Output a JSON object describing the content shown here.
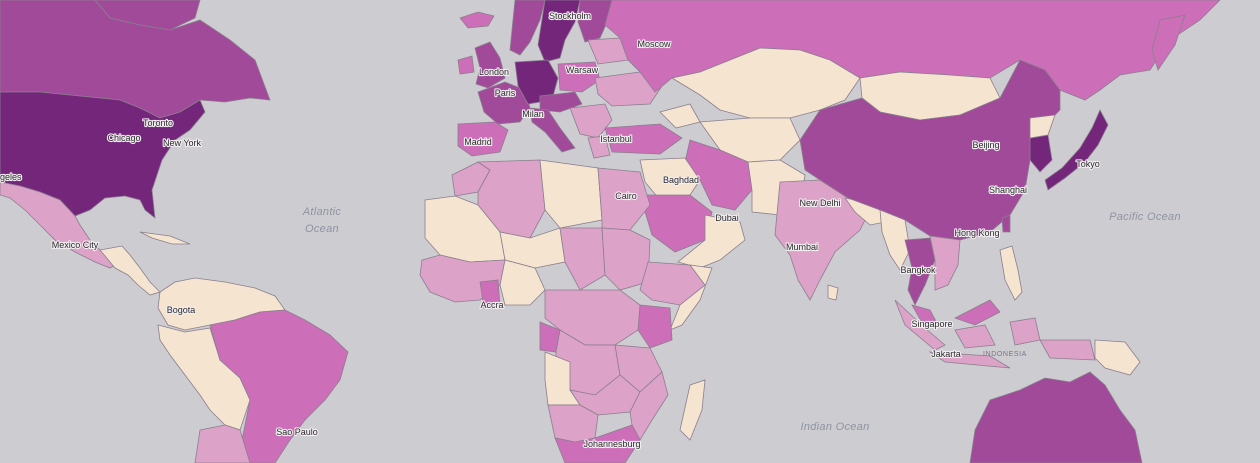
{
  "palette": {
    "ocean": "#cdccd1",
    "level_1": "#f5e4cf",
    "level_2": "#dda2c8",
    "level_3": "#cd6fb8",
    "level_4": "#a24a9a",
    "level_5": "#74267a"
  },
  "cities": [
    {
      "key": "stockholm",
      "label": "Stockholm"
    },
    {
      "key": "moscow",
      "label": "Moscow"
    },
    {
      "key": "london",
      "label": "London"
    },
    {
      "key": "warsaw",
      "label": "Warsaw"
    },
    {
      "key": "paris",
      "label": "Paris"
    },
    {
      "key": "milan",
      "label": "Milan"
    },
    {
      "key": "istanbul",
      "label": "Istanbul"
    },
    {
      "key": "madrid",
      "label": "Madrid"
    },
    {
      "key": "toronto",
      "label": "Toronto"
    },
    {
      "key": "chicago",
      "label": "Chicago"
    },
    {
      "key": "new_york",
      "label": "New York"
    },
    {
      "key": "los_angeles",
      "label": "geles"
    },
    {
      "key": "mexico_city",
      "label": "Mexico City"
    },
    {
      "key": "bogota",
      "label": "Bogota"
    },
    {
      "key": "sao_paulo",
      "label": "Sao Paulo"
    },
    {
      "key": "baghdad",
      "label": "Baghdad"
    },
    {
      "key": "cairo",
      "label": "Cairo"
    },
    {
      "key": "dubai",
      "label": "Dubai"
    },
    {
      "key": "new_delhi",
      "label": "New Delhi"
    },
    {
      "key": "mumbai",
      "label": "Mumbai"
    },
    {
      "key": "accra",
      "label": "Accra"
    },
    {
      "key": "johannesburg",
      "label": "Johannesburg"
    },
    {
      "key": "beijing",
      "label": "Beijing"
    },
    {
      "key": "shanghai",
      "label": "Shanghai"
    },
    {
      "key": "tokyo",
      "label": "Tokyo"
    },
    {
      "key": "hong_kong",
      "label": "Hong Kong"
    },
    {
      "key": "bangkok",
      "label": "Bangkok"
    },
    {
      "key": "singapore",
      "label": "Singapore"
    },
    {
      "key": "jakarta",
      "label": "Jakarta"
    }
  ],
  "oceans": {
    "atlantic_line1": "Atlantic",
    "atlantic_line2": "Ocean",
    "pacific": "Pacific Ocean",
    "indian": "Indian Ocean"
  },
  "regions": {
    "indonesia": "INDONESIA"
  }
}
